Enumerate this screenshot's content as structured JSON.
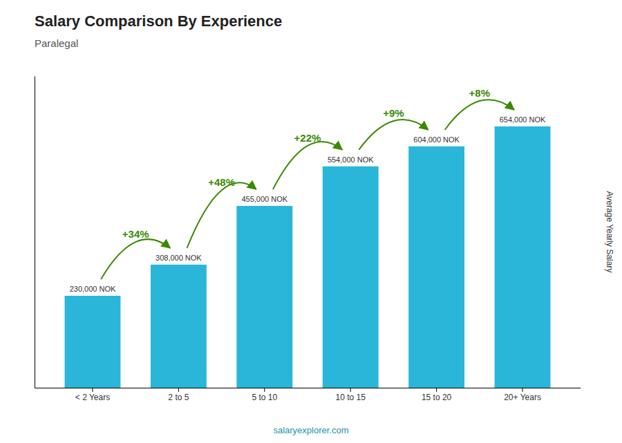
{
  "chart_data": {
    "type": "bar",
    "title": "Salary Comparison By Experience",
    "subtitle": "Paralegal",
    "ylabel": "Average Yearly Salary",
    "categories": [
      "< 2 Years",
      "2 to 5",
      "5 to 10",
      "10 to 15",
      "15 to 20",
      "20+ Years"
    ],
    "values": [
      230000,
      308000,
      455000,
      554000,
      604000,
      654000
    ],
    "value_labels": [
      "230,000 NOK",
      "308,000 NOK",
      "455,000 NOK",
      "554,000 NOK",
      "604,000 NOK",
      "654,000 NOK"
    ],
    "data_labels": true,
    "annotations": [
      "+34%",
      "+48%",
      "+22%",
      "+9%",
      "+8%"
    ],
    "footer": "salaryexplorer.com",
    "color": "#29b6d8",
    "ylim": [
      0,
      780000
    ],
    "tick_labels": "x",
    "grid": false
  }
}
